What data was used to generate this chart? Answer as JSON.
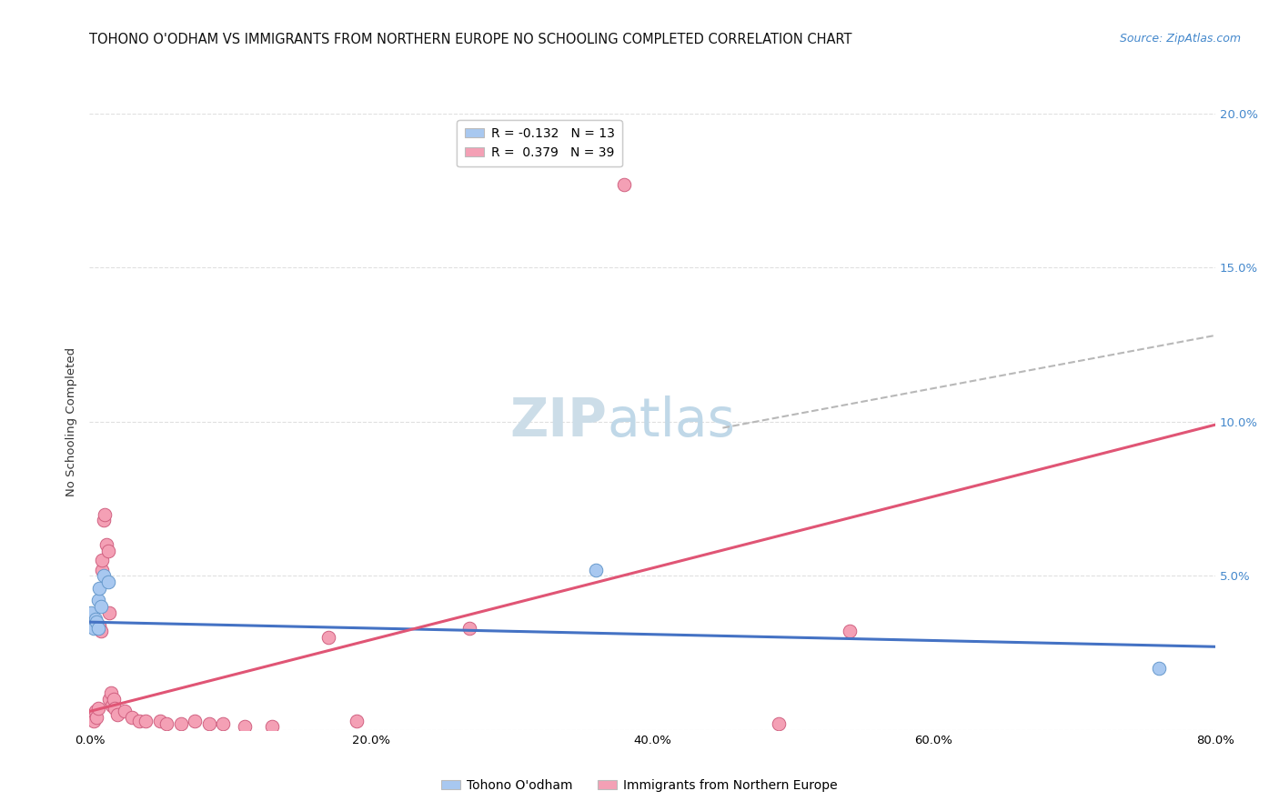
{
  "title": "TOHONO O'ODHAM VS IMMIGRANTS FROM NORTHERN EUROPE NO SCHOOLING COMPLETED CORRELATION CHART",
  "source": "Source: ZipAtlas.com",
  "ylabel": "No Schooling Completed",
  "xlim": [
    0,
    0.8
  ],
  "ylim": [
    0,
    0.2
  ],
  "xtick_labels": [
    "0.0%",
    "",
    "20.0%",
    "",
    "40.0%",
    "",
    "60.0%",
    "",
    "80.0%"
  ],
  "xtick_vals": [
    0.0,
    0.1,
    0.2,
    0.3,
    0.4,
    0.5,
    0.6,
    0.7,
    0.8
  ],
  "ytick_vals": [
    0.0,
    0.05,
    0.1,
    0.15,
    0.2
  ],
  "ytick_labels_right": [
    "",
    "5.0%",
    "10.0%",
    "15.0%",
    "20.0%"
  ],
  "legend_entries": [
    {
      "label": "R = -0.132   N = 13",
      "color": "#a8c8f0"
    },
    {
      "label": "R =  0.379   N = 39",
      "color": "#f4a0b5"
    }
  ],
  "legend_labels_bottom": [
    "Tohono O'odham",
    "Immigrants from Northern Europe"
  ],
  "legend_colors_bottom": [
    "#a8c8f0",
    "#f4a0b5"
  ],
  "watermark_zip": "ZIP",
  "watermark_atlas": "atlas",
  "blue_scatter": [
    [
      0.001,
      0.038
    ],
    [
      0.002,
      0.034
    ],
    [
      0.003,
      0.033
    ],
    [
      0.004,
      0.036
    ],
    [
      0.005,
      0.035
    ],
    [
      0.006,
      0.033
    ],
    [
      0.006,
      0.042
    ],
    [
      0.007,
      0.046
    ],
    [
      0.008,
      0.04
    ],
    [
      0.01,
      0.05
    ],
    [
      0.013,
      0.048
    ],
    [
      0.36,
      0.052
    ],
    [
      0.76,
      0.02
    ]
  ],
  "pink_scatter": [
    [
      0.001,
      0.004
    ],
    [
      0.002,
      0.005
    ],
    [
      0.003,
      0.003
    ],
    [
      0.004,
      0.006
    ],
    [
      0.005,
      0.004
    ],
    [
      0.006,
      0.007
    ],
    [
      0.007,
      0.034
    ],
    [
      0.008,
      0.032
    ],
    [
      0.009,
      0.052
    ],
    [
      0.009,
      0.055
    ],
    [
      0.01,
      0.068
    ],
    [
      0.011,
      0.07
    ],
    [
      0.012,
      0.06
    ],
    [
      0.013,
      0.058
    ],
    [
      0.014,
      0.038
    ],
    [
      0.014,
      0.01
    ],
    [
      0.015,
      0.012
    ],
    [
      0.016,
      0.008
    ],
    [
      0.017,
      0.01
    ],
    [
      0.018,
      0.007
    ],
    [
      0.02,
      0.005
    ],
    [
      0.025,
      0.006
    ],
    [
      0.03,
      0.004
    ],
    [
      0.035,
      0.003
    ],
    [
      0.04,
      0.003
    ],
    [
      0.05,
      0.003
    ],
    [
      0.055,
      0.002
    ],
    [
      0.065,
      0.002
    ],
    [
      0.075,
      0.003
    ],
    [
      0.085,
      0.002
    ],
    [
      0.095,
      0.002
    ],
    [
      0.11,
      0.001
    ],
    [
      0.13,
      0.001
    ],
    [
      0.17,
      0.03
    ],
    [
      0.19,
      0.003
    ],
    [
      0.27,
      0.033
    ],
    [
      0.38,
      0.177
    ],
    [
      0.49,
      0.002
    ],
    [
      0.54,
      0.032
    ]
  ],
  "blue_line_x": [
    0.0,
    0.8
  ],
  "blue_line_y": [
    0.035,
    0.027
  ],
  "pink_line_x": [
    0.0,
    0.8
  ],
  "pink_line_y": [
    0.006,
    0.099
  ],
  "dashed_line_x": [
    0.45,
    0.8
  ],
  "dashed_line_y": [
    0.098,
    0.128
  ],
  "scatter_size": 110,
  "blue_scatter_color": "#a8c8f0",
  "blue_scatter_edge": "#6699cc",
  "pink_scatter_color": "#f4a0b5",
  "pink_scatter_edge": "#d06080",
  "blue_line_color": "#4472c4",
  "pink_line_color": "#e05575",
  "dashed_line_color": "#b8b8b8",
  "grid_color": "#e0e0e0",
  "background_color": "#ffffff",
  "title_fontsize": 10.5,
  "axis_label_fontsize": 9.5,
  "tick_fontsize": 9.5,
  "source_fontsize": 9,
  "watermark_fontsize_zip": 42,
  "watermark_fontsize_atlas": 42,
  "watermark_color_zip": "#ccdde8",
  "watermark_color_atlas": "#c0d8e8",
  "right_tick_color": "#4488cc"
}
